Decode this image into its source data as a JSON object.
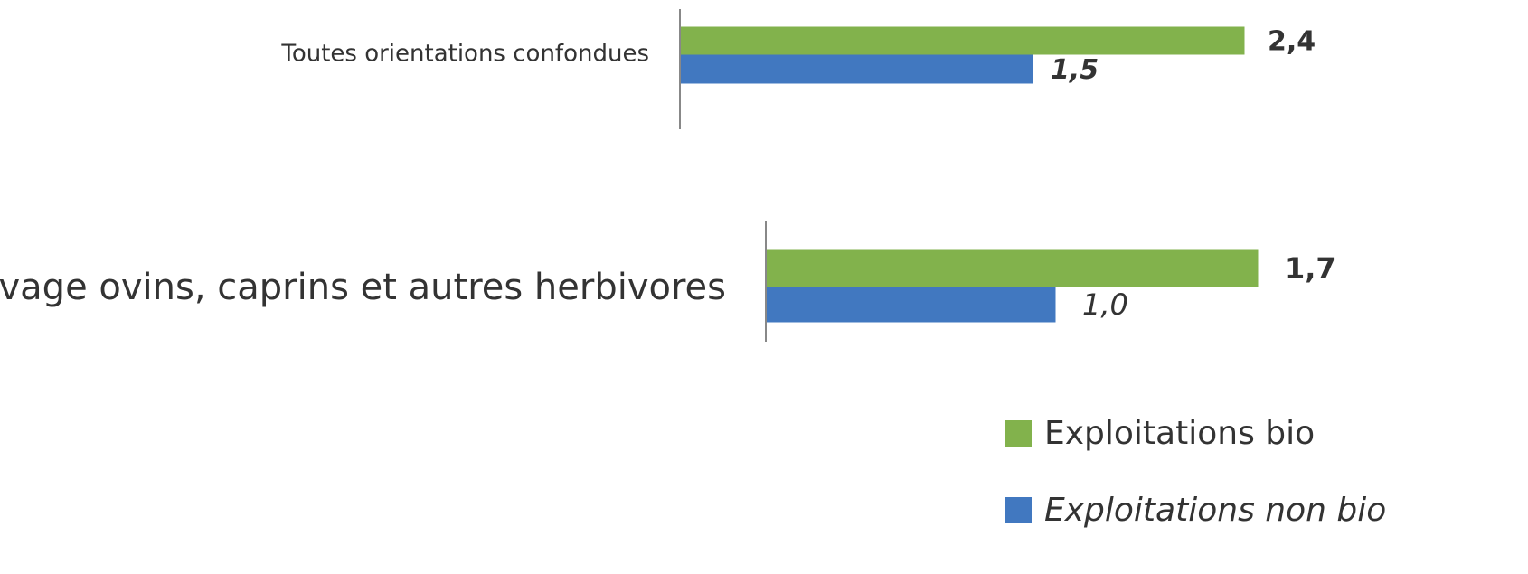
{
  "chart_data": [
    {
      "type": "bar",
      "orientation": "horizontal",
      "categories": [
        "Toutes orientations confondues"
      ],
      "xlim": [
        0,
        3
      ],
      "series": [
        {
          "name": "Exploitations bio",
          "color": "#82b24c",
          "values": [
            2.4
          ],
          "value_labels": [
            "2,4"
          ]
        },
        {
          "name": "Exploitations non bio",
          "color": "#4178c0",
          "values": [
            1.5
          ],
          "value_labels": [
            "1,5"
          ]
        }
      ]
    },
    {
      "type": "bar",
      "orientation": "horizontal",
      "categories": [
        "Elevage ovins, caprins et autres herbivores"
      ],
      "xlim": [
        0,
        2.5
      ],
      "series": [
        {
          "color": "#82b24c",
          "values": [
            1.7
          ],
          "value_labels": [
            "1,7"
          ]
        },
        {
          "color": "#4178c0",
          "values": [
            1.0
          ],
          "value_labels": [
            "1,0"
          ]
        }
      ]
    }
  ]
}
